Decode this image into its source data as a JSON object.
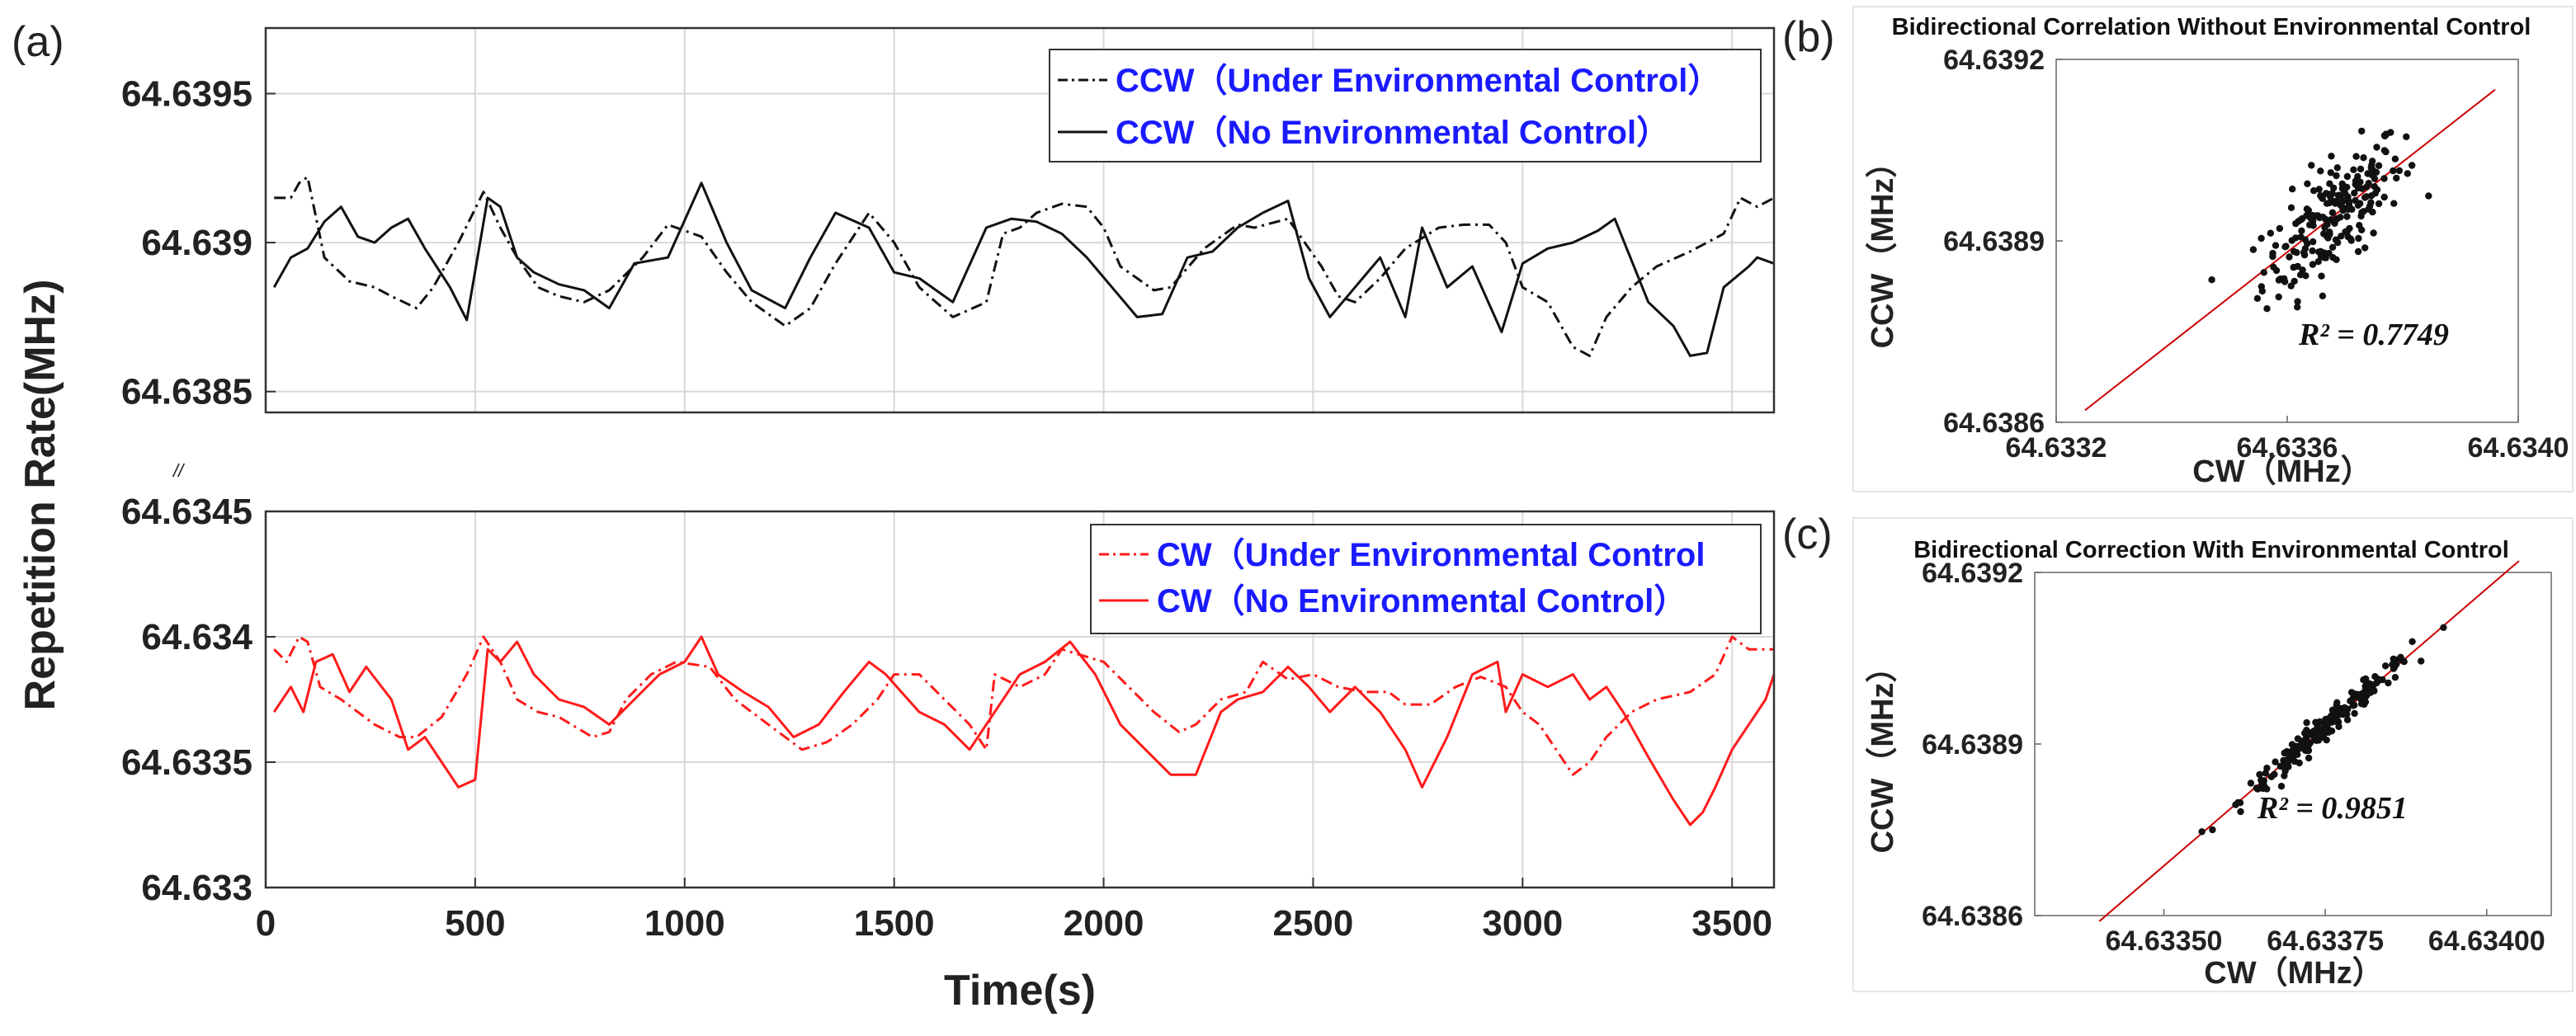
{
  "panel_labels": {
    "a": "(a)",
    "b": "(b)",
    "c": "(c)"
  },
  "shared_ylabel": "Repetition Rate(MHz)",
  "axis_break_mark": "//",
  "chart_data": [
    {
      "id": "a-top",
      "type": "line",
      "xlim": [
        0,
        3600
      ],
      "ylim": [
        64.63843,
        64.63972
      ],
      "yticks": [
        64.6385,
        64.639,
        64.6395
      ],
      "ytick_labels": [
        "64.6385",
        "64.639",
        "64.6395"
      ],
      "grid": true,
      "legend_position": "top-right",
      "series": [
        {
          "name": "CCW（Under Environmental Control）",
          "style": "dashdot",
          "color": "#111111",
          "x": [
            20,
            60,
            80,
            100,
            140,
            200,
            260,
            300,
            360,
            400,
            460,
            520,
            560,
            600,
            650,
            700,
            760,
            820,
            900,
            960,
            1040,
            1100,
            1160,
            1240,
            1300,
            1360,
            1440,
            1500,
            1560,
            1640,
            1720,
            1760,
            1800,
            1840,
            1900,
            1960,
            2000,
            2040,
            2080,
            2120,
            2160,
            2240,
            2320,
            2360,
            2440,
            2520,
            2560,
            2600,
            2660,
            2720,
            2800,
            2860,
            2920,
            2960,
            3000,
            3060,
            3120,
            3160,
            3200,
            3260,
            3320,
            3400,
            3480,
            3520,
            3560,
            3600
          ],
          "y": [
            64.63915,
            64.63915,
            64.6392,
            64.63922,
            64.63895,
            64.63887,
            64.63885,
            64.63882,
            64.63878,
            64.63885,
            64.639,
            64.63917,
            64.63905,
            64.63895,
            64.63885,
            64.63882,
            64.6388,
            64.63884,
            64.63895,
            64.63906,
            64.63902,
            64.6389,
            64.6388,
            64.63872,
            64.63878,
            64.63893,
            64.6391,
            64.639,
            64.63885,
            64.63875,
            64.6388,
            64.63903,
            64.63905,
            64.6391,
            64.63913,
            64.63912,
            64.63905,
            64.63892,
            64.63888,
            64.63884,
            64.63885,
            64.63898,
            64.63906,
            64.63905,
            64.63908,
            64.63892,
            64.63882,
            64.6388,
            64.63888,
            64.63898,
            64.63905,
            64.63906,
            64.63906,
            64.639,
            64.63885,
            64.6388,
            64.63865,
            64.63862,
            64.63875,
            64.63885,
            64.63892,
            64.63897,
            64.63903,
            64.63915,
            64.63912,
            64.63915
          ]
        },
        {
          "name": "CCW（No Environmental Control）",
          "style": "solid",
          "color": "#111111",
          "x": [
            20,
            60,
            100,
            140,
            180,
            220,
            260,
            300,
            340,
            380,
            440,
            480,
            530,
            560,
            600,
            640,
            700,
            760,
            820,
            880,
            960,
            1040,
            1100,
            1160,
            1240,
            1300,
            1360,
            1440,
            1500,
            1560,
            1640,
            1720,
            1780,
            1840,
            1900,
            1960,
            2020,
            2080,
            2140,
            2200,
            2260,
            2320,
            2380,
            2440,
            2490,
            2540,
            2600,
            2660,
            2720,
            2760,
            2820,
            2880,
            2950,
            3000,
            3060,
            3120,
            3180,
            3220,
            3300,
            3360,
            3400,
            3440,
            3480,
            3540,
            3560,
            3600
          ],
          "y": [
            64.63885,
            64.63895,
            64.63898,
            64.63907,
            64.63912,
            64.63902,
            64.639,
            64.63905,
            64.63908,
            64.63898,
            64.63885,
            64.63874,
            64.63915,
            64.63912,
            64.63895,
            64.6389,
            64.63886,
            64.63884,
            64.63878,
            64.63893,
            64.63895,
            64.6392,
            64.639,
            64.63884,
            64.63878,
            64.63895,
            64.6391,
            64.63905,
            64.6389,
            64.63888,
            64.6388,
            64.63905,
            64.63908,
            64.63907,
            64.63903,
            64.63895,
            64.63885,
            64.63875,
            64.63876,
            64.63895,
            64.63897,
            64.63905,
            64.6391,
            64.63914,
            64.63888,
            64.63875,
            64.63885,
            64.63895,
            64.63875,
            64.63905,
            64.63885,
            64.63892,
            64.6387,
            64.63893,
            64.63898,
            64.639,
            64.63904,
            64.63908,
            64.6388,
            64.63872,
            64.63862,
            64.63863,
            64.63885,
            64.63892,
            64.63895,
            64.63893
          ]
        }
      ],
      "legend": [
        "CCW（Under Environmental Control）",
        "CCW（No Environmental Control）"
      ]
    },
    {
      "id": "a-bottom",
      "type": "line",
      "xlim": [
        0,
        3600
      ],
      "ylim": [
        64.633,
        64.6345
      ],
      "xticks": [
        0,
        500,
        1000,
        1500,
        2000,
        2500,
        3000,
        3500
      ],
      "xtick_labels": [
        "0",
        "500",
        "1000",
        "1500",
        "2000",
        "2500",
        "3000",
        "3500"
      ],
      "yticks": [
        64.633,
        64.6335,
        64.634,
        64.6345
      ],
      "ytick_labels": [
        "64.633",
        "64.6335",
        "64.634",
        "64.6345"
      ],
      "xlabel": "Time(s)",
      "grid": true,
      "legend_position": "top-right",
      "series": [
        {
          "name": "CW（Under Environmental Control",
          "style": "dashdot",
          "color": "#ff1a1a",
          "x": [
            20,
            50,
            80,
            100,
            130,
            180,
            220,
            260,
            320,
            360,
            420,
            480,
            520,
            560,
            600,
            650,
            700,
            780,
            820,
            860,
            920,
            980,
            1060,
            1120,
            1200,
            1280,
            1340,
            1400,
            1460,
            1500,
            1560,
            1620,
            1680,
            1720,
            1740,
            1800,
            1860,
            1900,
            1960,
            2000,
            2060,
            2120,
            2180,
            2220,
            2280,
            2340,
            2380,
            2440,
            2500,
            2560,
            2620,
            2680,
            2720,
            2780,
            2840,
            2900,
            2960,
            3000,
            3040,
            3080,
            3120,
            3160,
            3200,
            3260,
            3320,
            3400,
            3460,
            3500,
            3540,
            3600
          ],
          "y": [
            64.63395,
            64.6339,
            64.634,
            64.63398,
            64.6338,
            64.63375,
            64.6337,
            64.63365,
            64.6336,
            64.6336,
            64.63368,
            64.63385,
            64.634,
            64.6339,
            64.63375,
            64.6337,
            64.63368,
            64.6336,
            64.63362,
            64.63375,
            64.63385,
            64.6339,
            64.63388,
            64.63375,
            64.63365,
            64.63355,
            64.63358,
            64.63365,
            64.63375,
            64.63385,
            64.63385,
            64.63375,
            64.63365,
            64.63355,
            64.63385,
            64.6338,
            64.63385,
            64.63395,
            64.63392,
            64.6339,
            64.6338,
            64.6337,
            64.63362,
            64.63365,
            64.63375,
            64.63378,
            64.6339,
            64.63383,
            64.63385,
            64.6338,
            64.63378,
            64.63378,
            64.63373,
            64.63373,
            64.6338,
            64.63384,
            64.6338,
            64.6337,
            64.63365,
            64.63355,
            64.63345,
            64.6335,
            64.6336,
            64.6337,
            64.63375,
            64.63378,
            64.63385,
            64.634,
            64.63395,
            64.63395
          ]
        },
        {
          "name": "CW（No Environmental Control）",
          "style": "solid",
          "color": "#ff1a1a",
          "x": [
            20,
            60,
            90,
            120,
            160,
            200,
            240,
            300,
            340,
            380,
            420,
            460,
            500,
            530,
            560,
            600,
            640,
            700,
            760,
            820,
            880,
            940,
            1000,
            1040,
            1080,
            1140,
            1200,
            1260,
            1320,
            1380,
            1440,
            1480,
            1560,
            1620,
            1680,
            1740,
            1800,
            1860,
            1920,
            1980,
            2040,
            2100,
            2160,
            2220,
            2280,
            2320,
            2380,
            2440,
            2490,
            2540,
            2600,
            2660,
            2720,
            2760,
            2820,
            2880,
            2940,
            2960,
            3000,
            3060,
            3120,
            3160,
            3200,
            3240,
            3300,
            3360,
            3400,
            3430,
            3460,
            3500,
            3540,
            3580,
            3600
          ],
          "y": [
            64.6337,
            64.6338,
            64.6337,
            64.6339,
            64.63393,
            64.63378,
            64.63388,
            64.63375,
            64.63355,
            64.6336,
            64.6335,
            64.6334,
            64.63343,
            64.63395,
            64.6339,
            64.63398,
            64.63385,
            64.63375,
            64.63372,
            64.63365,
            64.63375,
            64.63385,
            64.6339,
            64.634,
            64.63385,
            64.63378,
            64.63372,
            64.6336,
            64.63365,
            64.63378,
            64.6339,
            64.63385,
            64.6337,
            64.63365,
            64.63355,
            64.6337,
            64.63385,
            64.6339,
            64.63398,
            64.63385,
            64.63365,
            64.63355,
            64.63345,
            64.63345,
            64.6337,
            64.63375,
            64.63378,
            64.63388,
            64.6338,
            64.6337,
            64.6338,
            64.6337,
            64.63355,
            64.6334,
            64.6336,
            64.63385,
            64.6339,
            64.6337,
            64.63385,
            64.6338,
            64.63385,
            64.63375,
            64.6338,
            64.6337,
            64.63352,
            64.63335,
            64.63325,
            64.6333,
            64.6334,
            64.63355,
            64.63365,
            64.63375,
            64.63385
          ]
        }
      ],
      "legend": [
        "CW（Under Environmental Control",
        "CW（No Environmental Control）"
      ]
    },
    {
      "id": "b",
      "type": "scatter",
      "title": "Bidirectional Correlation Without Environmental Control",
      "xlabel": "CW（MHz）",
      "ylabel": "CCW（MHz）",
      "xlim": [
        64.6332,
        64.634
      ],
      "ylim": [
        64.6386,
        64.6392
      ],
      "xticks": [
        64.6332,
        64.6336,
        64.634
      ],
      "xtick_labels": [
        "64.6332",
        "64.6336",
        "64.6340"
      ],
      "yticks": [
        64.6386,
        64.6389,
        64.6392
      ],
      "ytick_labels": [
        "64.6386",
        "64.6389",
        "64.6392"
      ],
      "annotation": "R² = 0.7749",
      "fit_line": {
        "x": [
          64.63325,
          64.63396
        ],
        "y": [
          64.63862,
          64.63915
        ],
        "color": "#cc0000"
      },
      "points": {
        "x_center": 64.63368,
        "y_center": 64.63893,
        "x_spread": 0.00011,
        "noise": 4.5e-05,
        "count": 220
      }
    },
    {
      "id": "c",
      "type": "scatter",
      "title": "Bidirectional Correction With Environmental Control",
      "xlabel": "CW（MHz）",
      "ylabel": "CCW（MHz）",
      "xlim": [
        64.6333,
        64.6341
      ],
      "ylim": [
        64.6386,
        64.6392
      ],
      "xticks": [
        64.6335,
        64.63375,
        64.634
      ],
      "xtick_labels": [
        "64.63350",
        "64.63375",
        "64.63400"
      ],
      "yticks": [
        64.6386,
        64.6389,
        64.6392
      ],
      "ytick_labels": [
        "64.6386",
        "64.6389",
        "64.6392"
      ],
      "annotation": "R² = 0.9851",
      "fit_line": {
        "x": [
          64.6334,
          64.63405
        ],
        "y": [
          64.63859,
          64.63922
        ],
        "color": "#cc0000"
      },
      "points": {
        "x_center": 64.63375,
        "y_center": 64.63893,
        "x_spread": 0.00012,
        "noise": 1.1e-05,
        "count": 200
      }
    }
  ]
}
